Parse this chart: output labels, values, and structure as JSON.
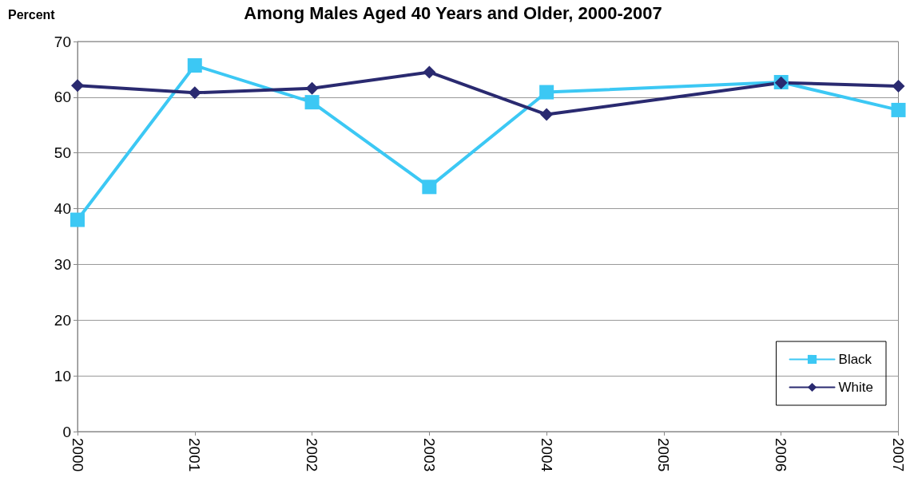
{
  "chart_data": {
    "type": "line",
    "title": "Among Males Aged 40 Years and Older, 2000-2007",
    "ylabel": "Percent",
    "x": [
      2000,
      2001,
      2002,
      2003,
      2004,
      2006,
      2007
    ],
    "series": [
      {
        "name": "Black",
        "color": "#3cc8f4",
        "marker": "square",
        "values": [
          38,
          65.7,
          59.1,
          43.9,
          60.9,
          62.7,
          57.7
        ]
      },
      {
        "name": "White",
        "color": "#2a2a70",
        "marker": "diamond",
        "values": [
          62.1,
          60.8,
          61.6,
          64.5,
          56.9,
          62.6,
          62.0
        ]
      }
    ],
    "xlim": [
      2000,
      2007
    ],
    "xticks": [
      2000,
      2001,
      2002,
      2003,
      2004,
      2005,
      2006,
      2007
    ],
    "ylim": [
      0,
      70
    ],
    "yticks": [
      0,
      10,
      20,
      30,
      40,
      50,
      60,
      70
    ],
    "grid": "y",
    "legend": "bottom right",
    "line_style": "solid"
  }
}
